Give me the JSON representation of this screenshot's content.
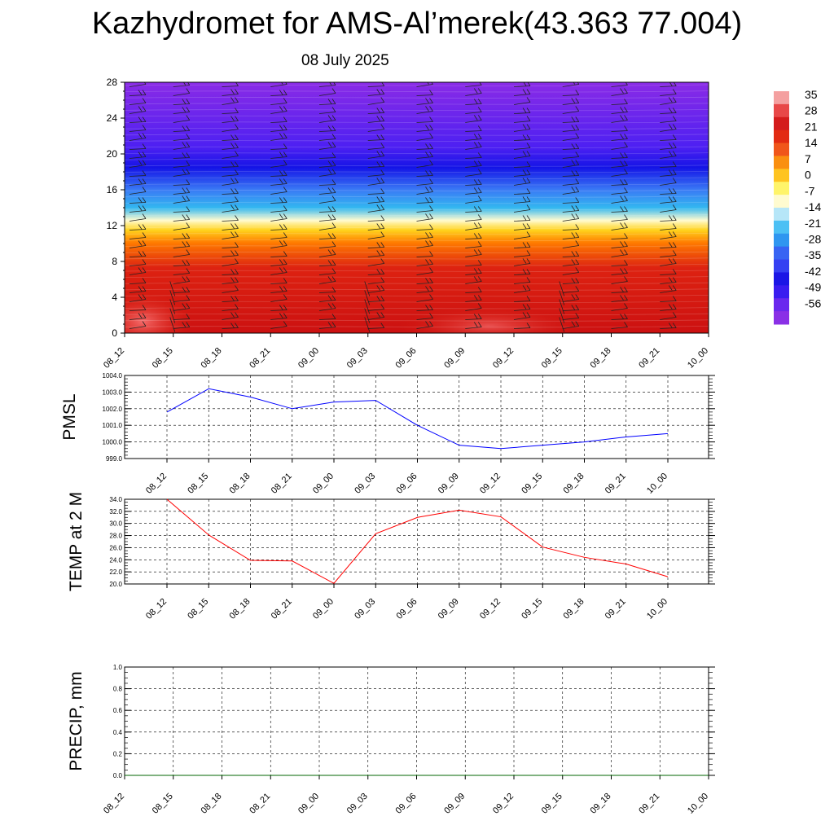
{
  "header": {
    "title": "Kazhydromet for AMS-Al’merek(43.363 77.004)",
    "subtitle": "08 July 2025"
  },
  "chart_data": [
    {
      "type": "heatmap",
      "title": "",
      "ylabel": "",
      "ylim": [
        0,
        28
      ],
      "yticks": [
        0,
        4,
        8,
        12,
        16,
        20,
        24,
        28
      ],
      "x_ticks": [
        "08_12",
        "08_15",
        "08_18",
        "08_21",
        "09_00",
        "09_03",
        "09_06",
        "09_09",
        "09_12",
        "09_15",
        "09_18",
        "09_21",
        "10_00"
      ],
      "colorbar": {
        "levels": [
          35,
          28,
          21,
          14,
          7,
          0,
          -7,
          -14,
          -21,
          -28,
          -35,
          -42,
          -49,
          -56
        ]
      },
      "temperature_profile": [
        {
          "y": 0,
          "value": 33
        },
        {
          "y": 4,
          "value": 26
        },
        {
          "y": 8,
          "value": 18
        },
        {
          "y": 12,
          "value": 2
        },
        {
          "y": 14,
          "value": -14
        },
        {
          "y": 16,
          "value": -28
        },
        {
          "y": 20,
          "value": -49
        },
        {
          "y": 24,
          "value": -58
        },
        {
          "y": 28,
          "value": -60
        }
      ],
      "overlay": "wind barbs"
    },
    {
      "type": "line",
      "ylabel": "PMSL",
      "ylim": [
        999.0,
        1004.0
      ],
      "yticks": [
        "999.0",
        "1000.0",
        "1001.0",
        "1002.0",
        "1003.0",
        "1004.0"
      ],
      "categories": [
        "08_12",
        "08_15",
        "08_18",
        "08_21",
        "09_00",
        "09_03",
        "09_06",
        "09_09",
        "09_12",
        "09_15",
        "09_18",
        "09_21",
        "10_00"
      ],
      "series": [
        {
          "color": "#0000ff",
          "values": [
            1001.8,
            1003.2,
            1002.7,
            1002.0,
            1002.4,
            1002.5,
            1001.0,
            999.8,
            999.6,
            999.8,
            1000.0,
            1000.3,
            1000.5
          ]
        }
      ]
    },
    {
      "type": "line",
      "ylabel": "TEMP at 2 M",
      "ylim": [
        20.0,
        34.0
      ],
      "yticks": [
        "20.0",
        "22.0",
        "24.0",
        "26.0",
        "28.0",
        "30.0",
        "32.0",
        "34.0"
      ],
      "categories": [
        "08_12",
        "08_15",
        "08_18",
        "08_21",
        "09_00",
        "09_03",
        "09_06",
        "09_09",
        "09_12",
        "09_15",
        "09_18",
        "09_21",
        "10_00"
      ],
      "series": [
        {
          "color": "#ff0000",
          "values": [
            34.0,
            28.1,
            23.9,
            23.8,
            20.1,
            28.3,
            31.0,
            32.2,
            31.1,
            26.1,
            24.4,
            23.3,
            21.2
          ]
        }
      ]
    },
    {
      "type": "line",
      "ylabel": "PRECIP, mm",
      "ylim": [
        0.0,
        1.0
      ],
      "yticks": [
        "0.0",
        "0.2",
        "0.4",
        "0.6",
        "0.8",
        "1.0"
      ],
      "categories": [
        "08_12",
        "08_15",
        "08_18",
        "08_21",
        "09_00",
        "09_03",
        "09_06",
        "09_09",
        "09_12",
        "09_15",
        "09_18",
        "09_21",
        "10_00"
      ],
      "series": [
        {
          "color": "#006400",
          "values": [
            0,
            0,
            0,
            0,
            0,
            0,
            0,
            0,
            0,
            0,
            0,
            0,
            0
          ]
        }
      ]
    }
  ]
}
